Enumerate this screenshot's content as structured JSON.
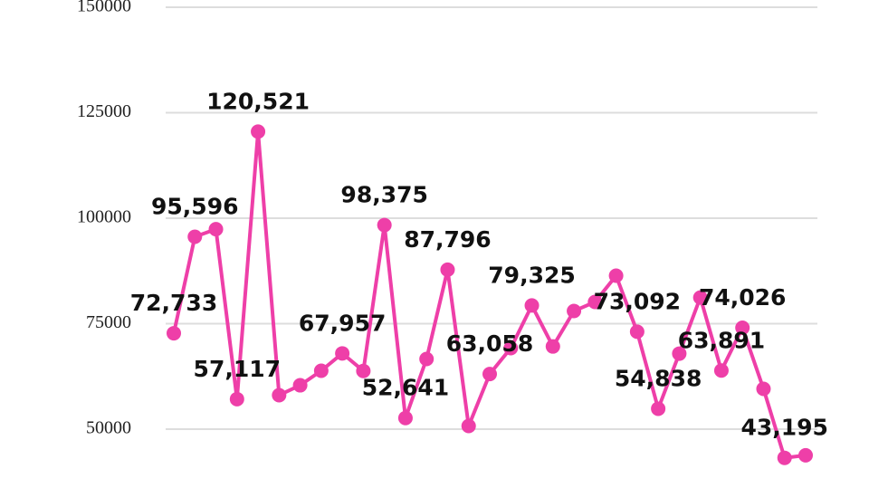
{
  "chart_data": {
    "type": "line",
    "categories": [
      null,
      null,
      null,
      null,
      null,
      null,
      null,
      null,
      null,
      null,
      null,
      null,
      null,
      null,
      null,
      null,
      null,
      null,
      null,
      null,
      null,
      null,
      null,
      null,
      null,
      null,
      null,
      null,
      null,
      null,
      null
    ],
    "values": [
      72733,
      95596,
      97400,
      57117,
      120521,
      58050,
      60400,
      63840,
      67957,
      63800,
      98375,
      52641,
      66630,
      87796,
      50750,
      63058,
      69200,
      79325,
      69600,
      78000,
      80150,
      86370,
      73092,
      54838,
      67900,
      81200,
      63891,
      74026,
      59550,
      43195,
      43800
    ],
    "value_labels": [
      "72,733",
      "95,596",
      null,
      "57,117",
      "120,521",
      null,
      null,
      null,
      "67,957",
      null,
      "98,375",
      "52,641",
      null,
      "87,796",
      null,
      "63,058",
      null,
      "79,325",
      null,
      null,
      null,
      null,
      "73,092",
      "54,838",
      null,
      null,
      "63,891",
      "74,026",
      null,
      "43,195",
      null
    ],
    "color": "#ee3fa8",
    "ylim": [
      37000,
      150000
    ],
    "yticks": [
      50000,
      75000,
      100000,
      125000,
      150000
    ],
    "grid": true
  }
}
